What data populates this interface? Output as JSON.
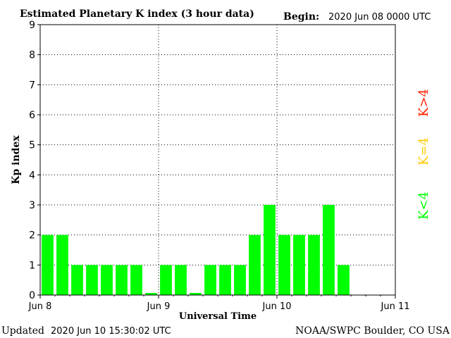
{
  "header": {
    "title": "Estimated Planetary K index (3 hour data)",
    "begin_label": "Begin:",
    "begin_value": "2020 Jun 08 0000 UTC"
  },
  "footer": {
    "updated_label": "Updated",
    "updated_value": "2020 Jun 10 15:30:02 UTC",
    "credit": "NOAA/SWPC Boulder, CO USA"
  },
  "legend": [
    {
      "label": "K<4",
      "color": "#00ff00"
    },
    {
      "label": "K=4",
      "color": "#ffcc00"
    },
    {
      "label": "K>4",
      "color": "#ff2200"
    }
  ],
  "chart_data": {
    "type": "bar",
    "title": "Estimated Planetary K index (3 hour data)",
    "xlabel": "Universal Time",
    "ylabel": "Kp index",
    "ylim": [
      0,
      9
    ],
    "yticks": [
      "0",
      "1",
      "2",
      "3",
      "4",
      "5",
      "6",
      "7",
      "8",
      "9"
    ],
    "xlim_days": [
      0,
      3
    ],
    "xticks": [
      {
        "day": 0,
        "label": "Jun 8"
      },
      {
        "day": 1,
        "label": "Jun 9"
      },
      {
        "day": 2,
        "label": "Jun 10"
      },
      {
        "day": 3,
        "label": "Jun 11"
      }
    ],
    "bar_color": "#00ff00",
    "grid": "dotted",
    "values": [
      2,
      2,
      1,
      1,
      1,
      1,
      1,
      0.07,
      1,
      1,
      0.07,
      1,
      1,
      1,
      2,
      3,
      2,
      2,
      2,
      3,
      1
    ]
  }
}
